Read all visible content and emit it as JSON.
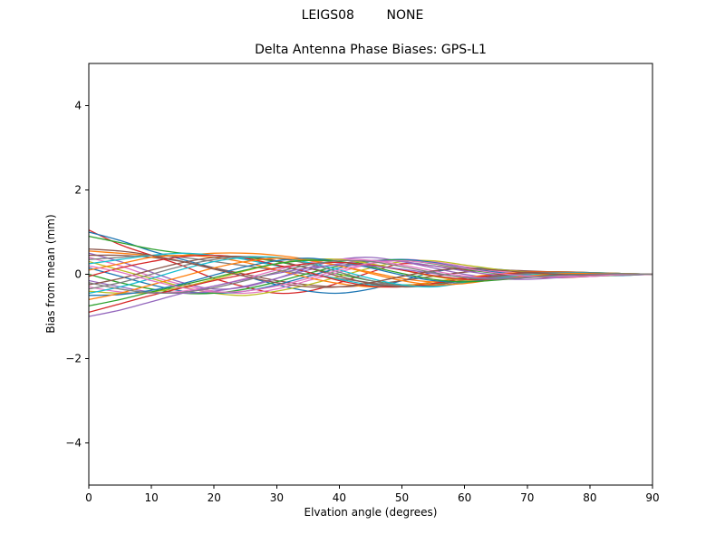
{
  "page": {
    "background": "#ffffff"
  },
  "header": {
    "title": "LEIGS08        NONE"
  },
  "chart_data": {
    "type": "line",
    "title": "Delta Antenna Phase Biases: GPS-L1",
    "xlabel": "Elvation angle (degrees)",
    "ylabel": "Bias from mean (mm)",
    "xlim": [
      0,
      90
    ],
    "ylim": [
      -5,
      5
    ],
    "x_ticks": [
      0,
      10,
      20,
      30,
      40,
      50,
      60,
      70,
      80,
      90
    ],
    "y_ticks": [
      -4,
      -2,
      0,
      2,
      4
    ],
    "grid": false,
    "legend": "none",
    "x": [
      0,
      5,
      10,
      15,
      20,
      25,
      30,
      35,
      40,
      45,
      50,
      55,
      60,
      65,
      70,
      75,
      80,
      85,
      90
    ],
    "series": [
      {
        "name": "line-01",
        "color": "#d62728",
        "values": [
          1.05,
          0.7,
          0.45,
          0.2,
          -0.1,
          -0.3,
          -0.45,
          -0.4,
          -0.2,
          0.05,
          0.25,
          0.2,
          0.1,
          0.05,
          -0.05,
          -0.08,
          -0.05,
          -0.02,
          0
        ]
      },
      {
        "name": "line-02",
        "color": "#1f77b4",
        "values": [
          1.0,
          0.8,
          0.55,
          0.35,
          0.15,
          -0.05,
          -0.25,
          -0.4,
          -0.45,
          -0.35,
          -0.15,
          0.05,
          0.15,
          0.12,
          0.06,
          0.02,
          -0.02,
          -0.03,
          0
        ]
      },
      {
        "name": "line-03",
        "color": "#2ca02c",
        "values": [
          0.9,
          0.75,
          0.6,
          0.5,
          0.45,
          0.4,
          0.3,
          0.15,
          0,
          -0.15,
          -0.25,
          -0.22,
          -0.15,
          -0.08,
          -0.02,
          0.02,
          0.04,
          0.02,
          0
        ]
      },
      {
        "name": "line-04",
        "color": "#ff7f0e",
        "values": [
          0.55,
          0.5,
          0.45,
          0.45,
          0.5,
          0.5,
          0.45,
          0.35,
          0.2,
          0.05,
          -0.1,
          -0.18,
          -0.15,
          -0.1,
          -0.05,
          0,
          0.03,
          0.02,
          0
        ]
      },
      {
        "name": "line-05",
        "color": "#9467bd",
        "values": [
          0.5,
          0.3,
          0.05,
          -0.2,
          -0.35,
          -0.3,
          -0.1,
          0.15,
          0.35,
          0.4,
          0.3,
          0.15,
          0,
          -0.1,
          -0.12,
          -0.08,
          -0.04,
          -0.01,
          0
        ]
      },
      {
        "name": "line-06",
        "color": "#8c564b",
        "values": [
          0.45,
          0.45,
          0.4,
          0.3,
          0.15,
          0,
          -0.15,
          -0.25,
          -0.3,
          -0.25,
          -0.15,
          -0.05,
          0.05,
          0.1,
          0.08,
          0.05,
          0.02,
          0.01,
          0
        ]
      },
      {
        "name": "line-07",
        "color": "#e377c2",
        "values": [
          0.4,
          0.2,
          -0.05,
          -0.25,
          -0.4,
          -0.45,
          -0.35,
          -0.15,
          0.05,
          0.25,
          0.35,
          0.3,
          0.18,
          0.08,
          0,
          -0.05,
          -0.05,
          -0.02,
          0
        ]
      },
      {
        "name": "line-08",
        "color": "#7f7f7f",
        "values": [
          0.35,
          0.4,
          0.45,
          0.4,
          0.3,
          0.2,
          0.1,
          0,
          -0.1,
          -0.2,
          -0.28,
          -0.25,
          -0.15,
          -0.08,
          -0.03,
          0.01,
          0.03,
          0.02,
          0
        ]
      },
      {
        "name": "line-09",
        "color": "#bcbd22",
        "values": [
          0.3,
          0.1,
          -0.1,
          -0.3,
          -0.45,
          -0.5,
          -0.4,
          -0.25,
          -0.05,
          0.15,
          0.3,
          0.32,
          0.22,
          0.12,
          0.05,
          0,
          -0.03,
          -0.02,
          0
        ]
      },
      {
        "name": "line-10",
        "color": "#17becf",
        "values": [
          0.25,
          0.35,
          0.45,
          0.5,
          0.45,
          0.35,
          0.2,
          0.05,
          -0.12,
          -0.25,
          -0.3,
          -0.25,
          -0.15,
          -0.05,
          0.02,
          0.05,
          0.04,
          0.02,
          0
        ]
      },
      {
        "name": "line-11",
        "color": "#1f77b4",
        "values": [
          0.15,
          -0.05,
          -0.25,
          -0.4,
          -0.45,
          -0.4,
          -0.25,
          -0.05,
          0.15,
          0.3,
          0.35,
          0.28,
          0.15,
          0.05,
          -0.02,
          -0.05,
          -0.04,
          -0.02,
          0
        ]
      },
      {
        "name": "line-12",
        "color": "#ff7f0e",
        "values": [
          0.1,
          0.25,
          0.4,
          0.45,
          0.4,
          0.28,
          0.1,
          -0.08,
          -0.22,
          -0.3,
          -0.28,
          -0.18,
          -0.08,
          0,
          0.05,
          0.06,
          0.04,
          0.02,
          0
        ]
      },
      {
        "name": "line-13",
        "color": "#2ca02c",
        "values": [
          0,
          -0.2,
          -0.35,
          -0.45,
          -0.45,
          -0.35,
          -0.18,
          0.02,
          0.2,
          0.32,
          0.33,
          0.25,
          0.12,
          0.02,
          -0.04,
          -0.06,
          -0.04,
          -0.02,
          0
        ]
      },
      {
        "name": "line-14",
        "color": "#d62728",
        "values": [
          -0.05,
          0.15,
          0.3,
          0.42,
          0.45,
          0.38,
          0.22,
          0.05,
          -0.15,
          -0.28,
          -0.3,
          -0.22,
          -0.1,
          -0.02,
          0.04,
          0.05,
          0.03,
          0.01,
          0
        ]
      },
      {
        "name": "line-15",
        "color": "#9467bd",
        "values": [
          -0.15,
          -0.3,
          -0.42,
          -0.45,
          -0.4,
          -0.28,
          -0.1,
          0.1,
          0.25,
          0.33,
          0.3,
          0.2,
          0.08,
          -0.02,
          -0.06,
          -0.06,
          -0.03,
          -0.01,
          0
        ]
      },
      {
        "name": "line-16",
        "color": "#8c564b",
        "values": [
          -0.25,
          -0.1,
          0.1,
          0.28,
          0.4,
          0.42,
          0.32,
          0.15,
          -0.05,
          -0.22,
          -0.3,
          -0.26,
          -0.14,
          -0.04,
          0.03,
          0.05,
          0.04,
          0.01,
          0
        ]
      },
      {
        "name": "line-17",
        "color": "#e377c2",
        "values": [
          -0.3,
          -0.42,
          -0.45,
          -0.4,
          -0.28,
          -0.1,
          0.1,
          0.27,
          0.36,
          0.33,
          0.22,
          0.08,
          -0.04,
          -0.1,
          -0.08,
          -0.04,
          -0.01,
          0,
          0
        ]
      },
      {
        "name": "line-18",
        "color": "#7f7f7f",
        "values": [
          -0.35,
          -0.2,
          0,
          0.2,
          0.35,
          0.42,
          0.38,
          0.25,
          0.05,
          -0.15,
          -0.27,
          -0.28,
          -0.18,
          -0.07,
          0.01,
          0.04,
          0.03,
          0.01,
          0
        ]
      },
      {
        "name": "line-19",
        "color": "#bcbd22",
        "values": [
          -0.4,
          -0.45,
          -0.42,
          -0.3,
          -0.12,
          0.08,
          0.25,
          0.35,
          0.35,
          0.25,
          0.1,
          -0.05,
          -0.14,
          -0.12,
          -0.06,
          -0.02,
          0,
          0.01,
          0
        ]
      },
      {
        "name": "line-20",
        "color": "#17becf",
        "values": [
          -0.45,
          -0.3,
          -0.1,
          0.12,
          0.3,
          0.4,
          0.4,
          0.28,
          0.1,
          -0.1,
          -0.25,
          -0.3,
          -0.2,
          -0.1,
          -0.02,
          0.02,
          0.03,
          0.01,
          0
        ]
      },
      {
        "name": "line-21",
        "color": "#1f77b4",
        "values": [
          -0.5,
          -0.48,
          -0.38,
          -0.22,
          -0.02,
          0.18,
          0.32,
          0.38,
          0.3,
          0.15,
          -0.02,
          -0.15,
          -0.18,
          -0.12,
          -0.05,
          0,
          0.02,
          0.01,
          0
        ]
      },
      {
        "name": "line-22",
        "color": "#ff7f0e",
        "values": [
          -0.6,
          -0.45,
          -0.25,
          -0.05,
          0.15,
          0.3,
          0.38,
          0.33,
          0.2,
          0.02,
          -0.15,
          -0.25,
          -0.22,
          -0.12,
          -0.04,
          0.01,
          0.02,
          0.01,
          0
        ]
      },
      {
        "name": "line-23",
        "color": "#2ca02c",
        "values": [
          -0.75,
          -0.6,
          -0.42,
          -0.25,
          -0.08,
          0.1,
          0.25,
          0.33,
          0.3,
          0.18,
          0.02,
          -0.12,
          -0.18,
          -0.14,
          -0.07,
          -0.02,
          0,
          0.01,
          0
        ]
      },
      {
        "name": "line-24",
        "color": "#d62728",
        "values": [
          -0.9,
          -0.7,
          -0.5,
          -0.32,
          -0.15,
          0,
          0.15,
          0.25,
          0.28,
          0.22,
          0.1,
          -0.03,
          -0.12,
          -0.12,
          -0.07,
          -0.03,
          0,
          0,
          0
        ]
      },
      {
        "name": "line-25",
        "color": "#9467bd",
        "values": [
          -1.0,
          -0.85,
          -0.65,
          -0.45,
          -0.28,
          -0.12,
          0.02,
          0.15,
          0.22,
          0.2,
          0.12,
          0.02,
          -0.07,
          -0.1,
          -0.07,
          -0.03,
          -0.01,
          0,
          0
        ]
      },
      {
        "name": "line-26",
        "color": "#8c564b",
        "values": [
          0.6,
          0.55,
          0.45,
          0.3,
          0.12,
          -0.05,
          -0.2,
          -0.3,
          -0.3,
          -0.2,
          -0.05,
          0.08,
          0.14,
          0.1,
          0.04,
          0,
          -0.02,
          -0.01,
          0
        ]
      },
      {
        "name": "line-27",
        "color": "#e377c2",
        "values": [
          0.2,
          0.05,
          -0.15,
          -0.32,
          -0.42,
          -0.4,
          -0.28,
          -0.1,
          0.1,
          0.26,
          0.32,
          0.26,
          0.14,
          0.03,
          -0.04,
          -0.06,
          -0.04,
          -0.01,
          0
        ]
      },
      {
        "name": "line-28",
        "color": "#7f7f7f",
        "values": [
          -0.2,
          -0.35,
          -0.44,
          -0.43,
          -0.32,
          -0.15,
          0.05,
          0.22,
          0.32,
          0.3,
          0.18,
          0.04,
          -0.08,
          -0.12,
          -0.08,
          -0.03,
          0,
          0.01,
          0
        ]
      }
    ]
  }
}
